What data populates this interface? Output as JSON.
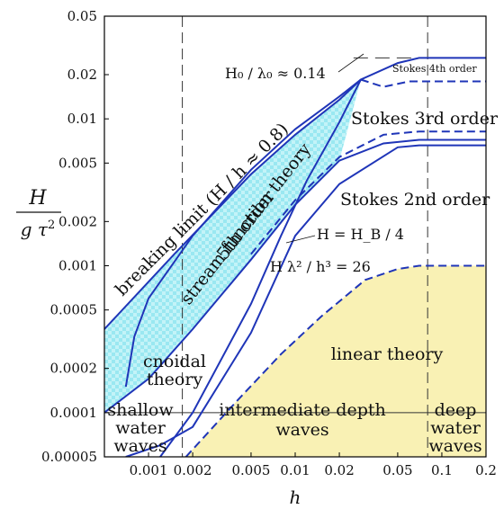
{
  "chart_data": {
    "type": "line",
    "xscale": "log",
    "yscale": "log",
    "xlim": [
      0.0005,
      0.2
    ],
    "ylim": [
      5e-05,
      0.05
    ],
    "xticks": [
      "0.001",
      "0.002",
      "0.005",
      "0.01",
      "0.02",
      "0.05",
      "0.1",
      "0.2"
    ],
    "yticks": [
      "0.05",
      "0.02",
      "0.01",
      "0.005",
      "0.002",
      "0.001",
      "0.0005",
      "0.0002",
      "0.0001",
      "0.00005"
    ],
    "xlabel": "h",
    "ylabel": "H / gτ²",
    "colors": {
      "curve": "#1f35b8",
      "stream": "#7fe3ee",
      "linear": "#f9f1b4",
      "guide": "#333333"
    },
    "curves": [
      {
        "name": "breaking limit",
        "style": "solid",
        "x": [
          0.0005,
          0.0015,
          0.005,
          0.01,
          0.02,
          0.028,
          0.05,
          0.07,
          0.1,
          0.2
        ],
        "y": [
          0.00037,
          0.0012,
          0.0042,
          0.0078,
          0.0135,
          0.0185,
          0.024,
          0.026,
          0.026,
          0.026
        ]
      },
      {
        "name": "stream function upper",
        "style": "solid",
        "x": [
          0.0007,
          0.0008,
          0.001,
          0.002,
          0.005,
          0.01,
          0.02,
          0.028
        ],
        "y": [
          0.00015,
          0.00033,
          0.0006,
          0.0016,
          0.0045,
          0.0085,
          0.0142,
          0.0185
        ]
      },
      {
        "name": "Stokes 3rd upper",
        "style": "dashed",
        "x": [
          0.028,
          0.04,
          0.06,
          0.08,
          0.1,
          0.2
        ],
        "y": [
          0.0185,
          0.0165,
          0.018,
          0.018,
          0.018,
          0.018
        ]
      },
      {
        "name": "Stokes 3rd lower",
        "style": "dashed",
        "x": [
          0.005,
          0.01,
          0.02,
          0.04,
          0.07,
          0.1,
          0.2
        ],
        "y": [
          0.0012,
          0.0028,
          0.0055,
          0.0078,
          0.0082,
          0.0082,
          0.0082
        ]
      },
      {
        "name": "Stokes 2nd upper",
        "style": "solid",
        "x": [
          0.0005,
          0.001,
          0.002,
          0.005,
          0.01,
          0.02,
          0.04,
          0.07,
          0.1,
          0.2
        ],
        "y": [
          0.0001,
          0.00017,
          0.00037,
          0.0011,
          0.0026,
          0.0052,
          0.0068,
          0.0072,
          0.0072,
          0.0072
        ]
      },
      {
        "name": "Stokes 2nd lower",
        "style": "solid",
        "x": [
          0.0007,
          0.0012,
          0.002,
          0.005,
          0.01,
          0.02,
          0.05,
          0.07,
          0.1,
          0.2
        ],
        "y": [
          5e-05,
          6e-05,
          8e-05,
          0.00035,
          0.0016,
          0.0036,
          0.0064,
          0.0066,
          0.0066,
          0.0066
        ]
      },
      {
        "name": "H = H_B / 4",
        "style": "solid",
        "x": [
          0.0012,
          0.002,
          0.005,
          0.008,
          0.012,
          0.02,
          0.028
        ],
        "y": [
          5e-05,
          0.0001,
          0.00055,
          0.0016,
          0.0038,
          0.0095,
          0.0185
        ]
      },
      {
        "name": "linear theory boundary",
        "style": "dashed",
        "x": [
          0.0018,
          0.004,
          0.008,
          0.015,
          0.03,
          0.05,
          0.07,
          0.1,
          0.2
        ],
        "y": [
          5e-05,
          0.00012,
          0.00025,
          0.00045,
          0.0008,
          0.00095,
          0.001,
          0.001,
          0.001
        ]
      }
    ],
    "vlines": [
      {
        "x": 0.0017,
        "style": "dashed"
      },
      {
        "x": 0.08,
        "style": "dashed"
      }
    ],
    "hline": {
      "y": 0.0001,
      "label_rows": true
    }
  },
  "annotations": {
    "breaking": "breaking limit (H / h ≈ 0.8)",
    "order5": "5th order",
    "stream": "stream function theory",
    "stokes4": "Stokes 4th order",
    "stokes3": "Stokes 3rd order",
    "stokes2": "Stokes 2nd order",
    "h0l0": "H₀ / λ₀ ≈ 0.14",
    "hb": "H = H_B / 4",
    "ursell": "H λ² / h³ = 26",
    "cnoidal": "cnoidal",
    "cnoidal2": "theory",
    "linear": "linear theory",
    "shallow1": "shallow",
    "shallow2": "water",
    "shallow3": "waves",
    "inter1": "intermediate depth",
    "inter2": "waves",
    "deep1": "deep",
    "deep2": "water",
    "deep3": "waves"
  }
}
